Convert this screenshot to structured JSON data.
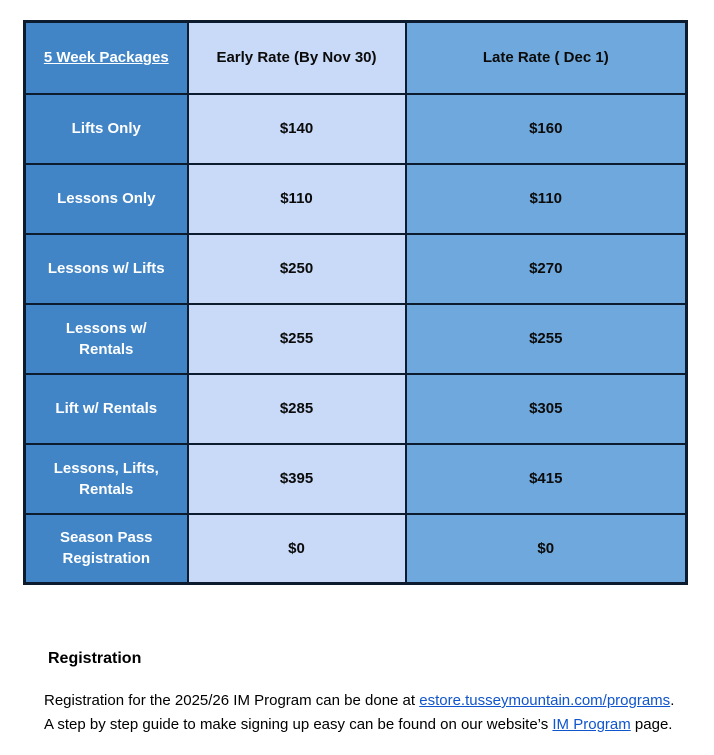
{
  "table": {
    "header": {
      "col_label": "5 Week Packages",
      "col_early": "Early Rate (By Nov 30)",
      "col_late": "Late Rate ( Dec 1)"
    },
    "rows": [
      {
        "label": "Lifts Only",
        "early": "$140",
        "late": "$160"
      },
      {
        "label": "Lessons Only",
        "early": "$110",
        "late": "$110"
      },
      {
        "label": "Lessons w/ Lifts",
        "early": "$250",
        "late": "$270"
      },
      {
        "label": "Lessons w/\nRentals",
        "early": "$255",
        "late": "$255"
      },
      {
        "label": "Lift w/ Rentals",
        "early": "$285",
        "late": "$305"
      },
      {
        "label": "Lessons, Lifts,\nRentals",
        "early": "$395",
        "late": "$415"
      },
      {
        "label": "Season Pass\nRegistration",
        "early": "$0",
        "late": "$0"
      }
    ]
  },
  "colors": {
    "label_column_bg": "#4285c6",
    "early_column_bg": "#c9daf8",
    "late_column_bg": "#6fa8dc",
    "table_border": "#0d1b2e",
    "link": "#1155cc"
  },
  "footer": {
    "heading": "Registration",
    "line1_prefix": "Registration for the 2025/26 IM Program can be done at ",
    "line1_link": "estore.tusseymountain.com/programs",
    "line1_suffix": ".",
    "line2_prefix": "A step by step guide to make signing up easy can be found on our website’s ",
    "line2_link": "IM Program",
    "line2_suffix": " page."
  }
}
